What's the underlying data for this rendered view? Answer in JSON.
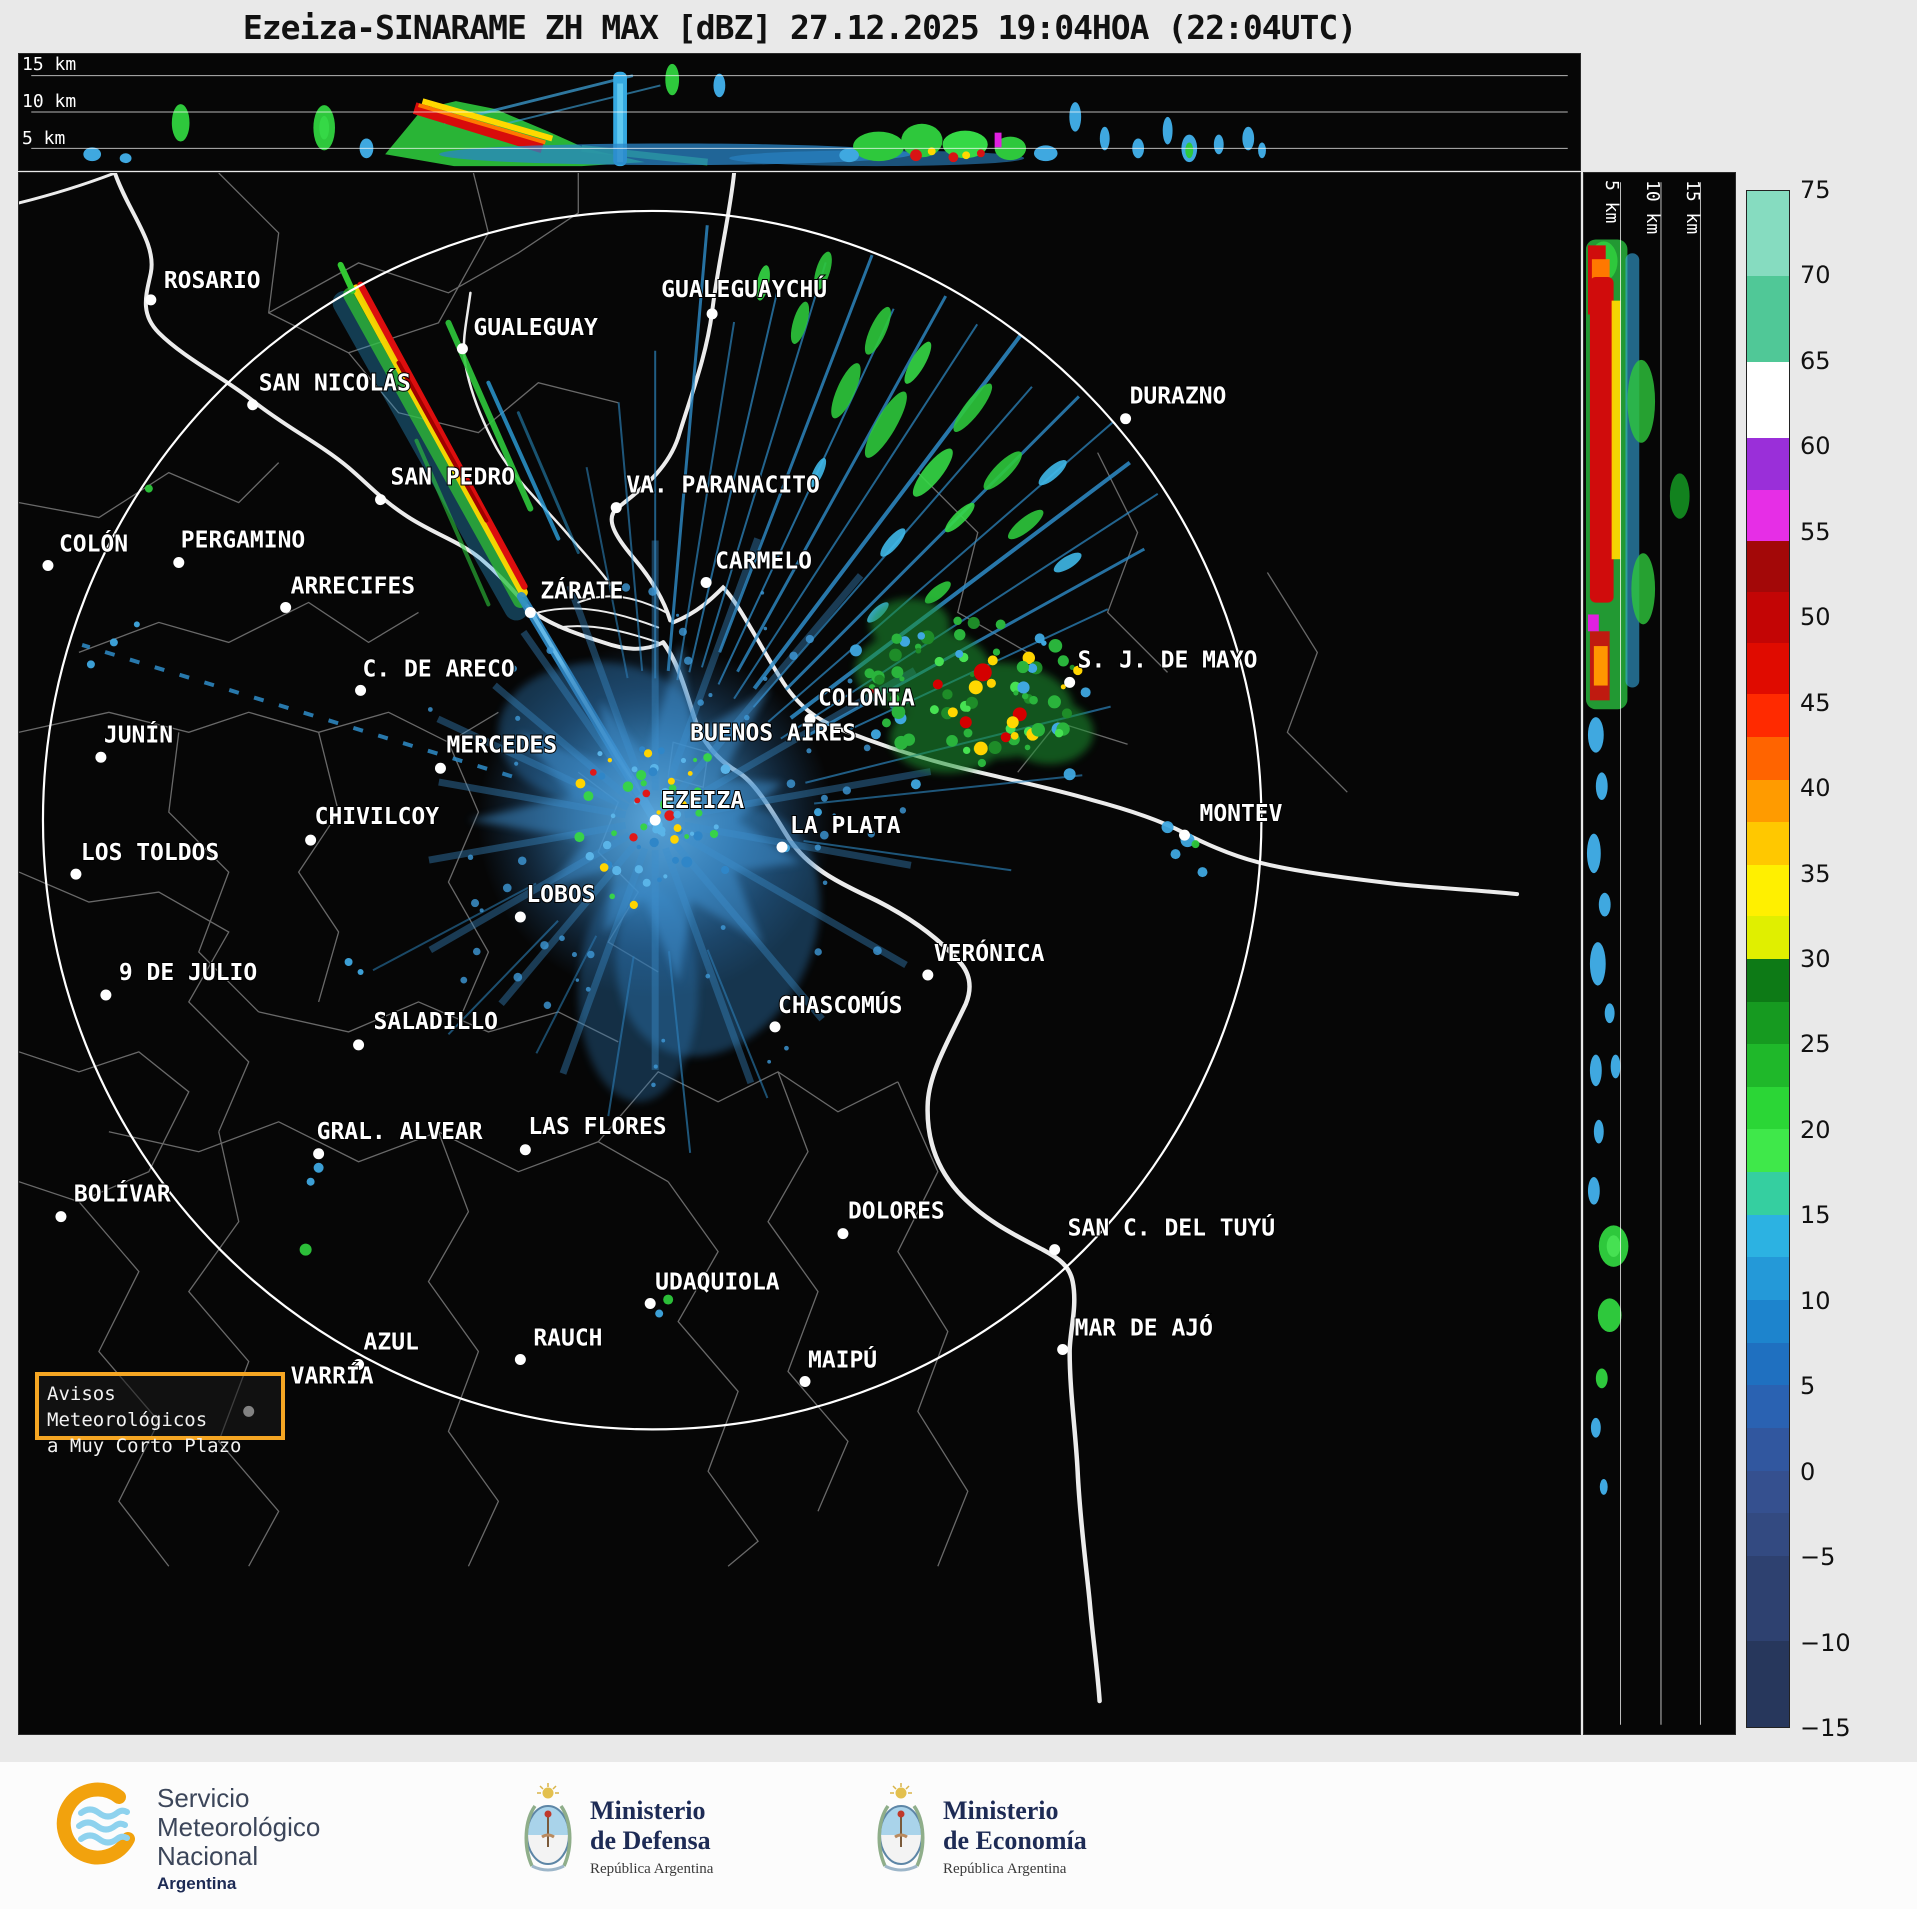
{
  "title": "Ezeiza-SINARAME ZH MAX [dBZ] 27.12.2025 19:04HOA (22:04UTC)",
  "top_profile": {
    "altitude_labels": [
      "15 km",
      "10 km",
      "5 km"
    ]
  },
  "side_profile": {
    "altitude_labels": [
      "5 km",
      "10 km",
      "15 km"
    ]
  },
  "colorbar": {
    "ticks": [
      "75",
      "70",
      "65",
      "60",
      "55",
      "50",
      "45",
      "40",
      "35",
      "30",
      "25",
      "20",
      "15",
      "10",
      "5",
      "0",
      "−5",
      "−10",
      "−15"
    ],
    "segments": [
      {
        "from": 75,
        "to": 70,
        "color": "#86dcc0"
      },
      {
        "from": 70,
        "to": 65,
        "color": "#50c897"
      },
      {
        "from": 65,
        "to": 60.5,
        "color": "#ffffff"
      },
      {
        "from": 60.5,
        "to": 57.5,
        "color": "#9a2fd9"
      },
      {
        "from": 57.5,
        "to": 54.5,
        "color": "#e62ee6"
      },
      {
        "from": 54.5,
        "to": 51.5,
        "color": "#a30808"
      },
      {
        "from": 51.5,
        "to": 48.5,
        "color": "#c30505"
      },
      {
        "from": 48.5,
        "to": 45.5,
        "color": "#e00b00"
      },
      {
        "from": 45.5,
        "to": 43,
        "color": "#ff2a00"
      },
      {
        "from": 43,
        "to": 40.5,
        "color": "#ff6400"
      },
      {
        "from": 40.5,
        "to": 38,
        "color": "#ff9b00"
      },
      {
        "from": 38,
        "to": 35.5,
        "color": "#ffc800"
      },
      {
        "from": 35.5,
        "to": 32.5,
        "color": "#fff000"
      },
      {
        "from": 32.5,
        "to": 30,
        "color": "#e0ef00"
      },
      {
        "from": 30,
        "to": 27.5,
        "color": "#0d7a16"
      },
      {
        "from": 27.5,
        "to": 25,
        "color": "#169a20"
      },
      {
        "from": 25,
        "to": 22.5,
        "color": "#1fb82a"
      },
      {
        "from": 22.5,
        "to": 20,
        "color": "#2bd636"
      },
      {
        "from": 20,
        "to": 17.5,
        "color": "#3fe84a"
      },
      {
        "from": 17.5,
        "to": 15,
        "color": "#35cfa0"
      },
      {
        "from": 15,
        "to": 12.5,
        "color": "#2cb2e2"
      },
      {
        "from": 12.5,
        "to": 10,
        "color": "#2499d8"
      },
      {
        "from": 10,
        "to": 7.5,
        "color": "#1d84cd"
      },
      {
        "from": 7.5,
        "to": 5,
        "color": "#1f70c0"
      },
      {
        "from": 5,
        "to": 2.5,
        "color": "#2a62b2"
      },
      {
        "from": 2.5,
        "to": 0,
        "color": "#31579f"
      },
      {
        "from": 0,
        "to": -2.5,
        "color": "#35508f"
      },
      {
        "from": -2.5,
        "to": -5,
        "color": "#334a81"
      },
      {
        "from": -5,
        "to": -10,
        "color": "#2e4170"
      },
      {
        "from": -10,
        "to": -15,
        "color": "#27375c"
      }
    ]
  },
  "map": {
    "cities": [
      {
        "name": "ROSARIO",
        "label": [
          145,
          115
        ],
        "dot": [
          132,
          127
        ]
      },
      {
        "name": "GUALEGUAYCHÚ",
        "label": [
          643,
          124
        ],
        "dot": [
          694,
          141
        ]
      },
      {
        "name": "GUALEGUAY",
        "label": [
          455,
          162
        ],
        "dot": [
          444,
          176
        ]
      },
      {
        "name": "SAN NICOLÁS",
        "label": [
          240,
          218
        ],
        "dot": [
          234,
          232
        ]
      },
      {
        "name": "DURAZNO",
        "label": [
          1112,
          231
        ],
        "dot": [
          1108,
          246
        ]
      },
      {
        "name": "SAN PEDRO",
        "label": [
          372,
          312
        ],
        "dot": [
          362,
          327
        ]
      },
      {
        "name": "VA. PARANACITO",
        "label": [
          608,
          320
        ],
        "dot": [
          598,
          335
        ]
      },
      {
        "name": "COLÓN",
        "label": [
          40,
          379
        ],
        "dot": [
          29,
          393
        ]
      },
      {
        "name": "PERGAMINO",
        "label": [
          162,
          375
        ],
        "dot": [
          160,
          390
        ]
      },
      {
        "name": "CARMELO",
        "label": [
          697,
          396
        ],
        "dot": [
          688,
          410
        ]
      },
      {
        "name": "ARRECIFES",
        "label": [
          272,
          421
        ],
        "dot": [
          267,
          435
        ]
      },
      {
        "name": "ZÁRATE",
        "label": [
          522,
          426
        ],
        "dot": [
          512,
          440
        ]
      },
      {
        "name": "C. DE ARECO",
        "label": [
          344,
          504
        ],
        "dot": [
          342,
          518
        ]
      },
      {
        "name": "S. J. DE MAYO",
        "label": [
          1060,
          495
        ],
        "dot": [
          1052,
          510
        ]
      },
      {
        "name": "COLONIA",
        "label": [
          800,
          533
        ],
        "dot": [
          792,
          547
        ]
      },
      {
        "name": "JUNÍN",
        "label": [
          85,
          570
        ],
        "dot": [
          82,
          585
        ]
      },
      {
        "name": "BUENOS AIRES",
        "label": [
          672,
          568
        ],
        "dot": null
      },
      {
        "name": "MERCEDES",
        "label": [
          428,
          580
        ],
        "dot": [
          422,
          596
        ]
      },
      {
        "name": "EZEIZA",
        "label": [
          643,
          636
        ],
        "dot": [
          637,
          648
        ]
      },
      {
        "name": "CHIVILCOY",
        "label": [
          296,
          652
        ],
        "dot": [
          292,
          668
        ]
      },
      {
        "name": "LA PLATA",
        "label": [
          772,
          661
        ],
        "dot": [
          764,
          675
        ]
      },
      {
        "name": "MONTEV",
        "label": [
          1182,
          649
        ],
        "dot": [
          1167,
          663
        ]
      },
      {
        "name": "LOS TOLDOS",
        "label": [
          62,
          688
        ],
        "dot": [
          57,
          702
        ]
      },
      {
        "name": "LOBOS",
        "label": [
          508,
          730
        ],
        "dot": [
          502,
          745
        ]
      },
      {
        "name": "VERÓNICA",
        "label": [
          916,
          789
        ],
        "dot": [
          910,
          803
        ]
      },
      {
        "name": "9 DE JULIO",
        "label": [
          100,
          808
        ],
        "dot": [
          87,
          823
        ]
      },
      {
        "name": "CHASCOMÚS",
        "label": [
          760,
          841
        ],
        "dot": [
          757,
          855
        ]
      },
      {
        "name": "SALADILLO",
        "label": [
          355,
          857
        ],
        "dot": [
          340,
          873
        ]
      },
      {
        "name": "GRAL. ALVEAR",
        "label": [
          298,
          967
        ],
        "dot": [
          300,
          982
        ]
      },
      {
        "name": "LAS FLORES",
        "label": [
          510,
          962
        ],
        "dot": [
          507,
          978
        ]
      },
      {
        "name": "BOLÍVAR",
        "label": [
          55,
          1030
        ],
        "dot": [
          42,
          1045
        ]
      },
      {
        "name": "DOLORES",
        "label": [
          830,
          1047
        ],
        "dot": [
          825,
          1062
        ]
      },
      {
        "name": "SAN C. DEL TUYÚ",
        "label": [
          1050,
          1064
        ],
        "dot": [
          1037,
          1078
        ]
      },
      {
        "name": "UDAQUIOLA",
        "label": [
          637,
          1118
        ],
        "dot": [
          632,
          1132
        ]
      },
      {
        "name": "MAR DE AJÓ",
        "label": [
          1057,
          1164
        ],
        "dot": [
          1045,
          1178
        ]
      },
      {
        "name": "AZUL",
        "label": [
          345,
          1178
        ],
        "dot": [
          340,
          1193
        ]
      },
      {
        "name": "RAUCH",
        "label": [
          515,
          1174
        ],
        "dot": [
          502,
          1188
        ]
      },
      {
        "name": "MAIPÚ",
        "label": [
          790,
          1196
        ],
        "dot": [
          787,
          1210
        ]
      },
      {
        "name": "VARRÍA",
        "label": [
          272,
          1212
        ],
        "dot": [
          230,
          1240
        ]
      }
    ]
  },
  "warning_box": {
    "line1": "Avisos Meteorológicos",
    "line2": "a Muy Corto Plazo"
  },
  "footer": {
    "smn": {
      "lines": [
        "Servicio",
        "Meteorológico",
        "Nacional"
      ],
      "country": "Argentina"
    },
    "defensa": {
      "title": "Ministerio",
      "subtitle": "de Defensa",
      "country": "República Argentina"
    },
    "economia": {
      "title": "Ministerio",
      "subtitle": "de Economía",
      "country": "República Argentina"
    }
  }
}
